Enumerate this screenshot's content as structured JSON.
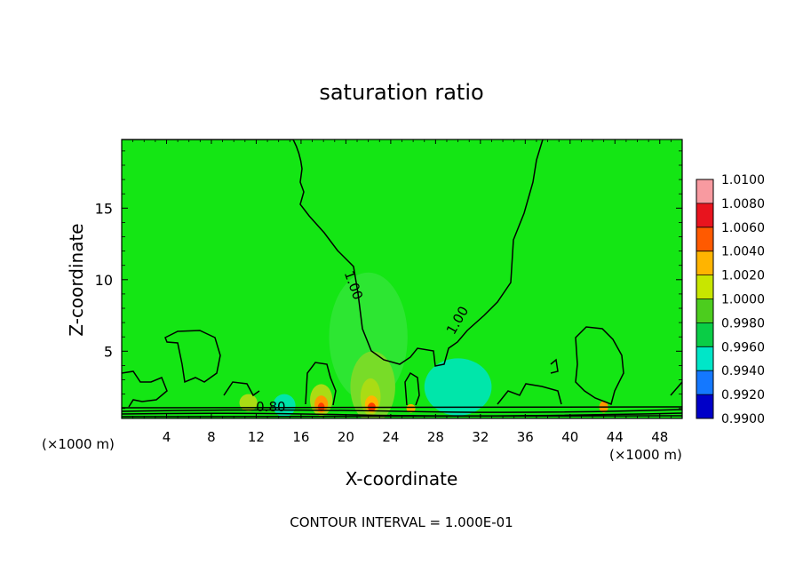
{
  "chart_data": {
    "type": "heatmap",
    "title": "saturation ratio",
    "xlabel": "X-coordinate",
    "ylabel": "Z-coordinate",
    "x_unit_label": "(×1000 m)",
    "x_ticks": [
      4,
      8,
      12,
      16,
      20,
      24,
      28,
      32,
      36,
      40,
      44,
      48
    ],
    "y_ticks": [
      5,
      10,
      15
    ],
    "xlim": [
      0,
      50
    ],
    "ylim": [
      0.3,
      19.8
    ],
    "footer": "CONTOUR INTERVAL = 1.000E-01",
    "contour_labels": [
      {
        "text": "1.00",
        "x": 20.3,
        "z": 9.5,
        "rotation": 70
      },
      {
        "text": "1.00",
        "x": 30.3,
        "z": 7.0,
        "rotation": -60
      },
      {
        "text": "0.80",
        "x": 13.3,
        "z": 0.8,
        "rotation": 0
      }
    ],
    "colorbar": {
      "levels": [
        "1.0100",
        "1.0080",
        "1.0060",
        "1.0040",
        "1.0020",
        "1.0000",
        "0.9980",
        "0.9960",
        "0.9940",
        "0.9920",
        "0.9900"
      ],
      "colors": [
        "#f89aa0",
        "#e8141e",
        "#ff5a00",
        "#ffb400",
        "#c8e600",
        "#4ccd1e",
        "#0acd46",
        "#00e6c8",
        "#1478ff",
        "#0000c8",
        "#6e00a0"
      ]
    },
    "field": {
      "background_color": "#14e614",
      "regions": [
        {
          "color": "#2de632",
          "x": 22,
          "z": 6,
          "rx": 3.5,
          "rz": 4.5
        },
        {
          "color": "#78dc28",
          "x": 22.4,
          "z": 2.5,
          "rx": 2,
          "rz": 2.5
        },
        {
          "color": "#aadc14",
          "x": 22.2,
          "z": 1.8,
          "rx": 0.9,
          "rz": 1.3
        },
        {
          "color": "#00e6aa",
          "x": 30,
          "z": 2.5,
          "rx": 3,
          "rz": 2
        },
        {
          "color": "#00e6aa",
          "x": 14.5,
          "z": 1.2,
          "rx": 1,
          "rz": 0.8
        },
        {
          "color": "#aadc14",
          "x": 17.8,
          "z": 1.6,
          "rx": 1,
          "rz": 1.1
        },
        {
          "color": "#ff9600",
          "x": 17.8,
          "z": 1.3,
          "rx": 0.6,
          "rz": 0.6
        },
        {
          "color": "#ff3c00",
          "x": 17.8,
          "z": 1.1,
          "rx": 0.3,
          "rz": 0.3
        },
        {
          "color": "#ffb400",
          "x": 22.3,
          "z": 1.3,
          "rx": 0.6,
          "rz": 0.6
        },
        {
          "color": "#ff3c00",
          "x": 22.3,
          "z": 1.1,
          "rx": 0.35,
          "rz": 0.3
        },
        {
          "color": "#ffb400",
          "x": 25.8,
          "z": 1.0,
          "rx": 0.4,
          "rz": 0.3
        },
        {
          "color": "#ff9600",
          "x": 43.0,
          "z": 1.1,
          "rx": 0.4,
          "rz": 0.4
        },
        {
          "color": "#aadc14",
          "x": 11.3,
          "z": 1.4,
          "rx": 0.8,
          "rz": 0.6
        }
      ]
    }
  }
}
